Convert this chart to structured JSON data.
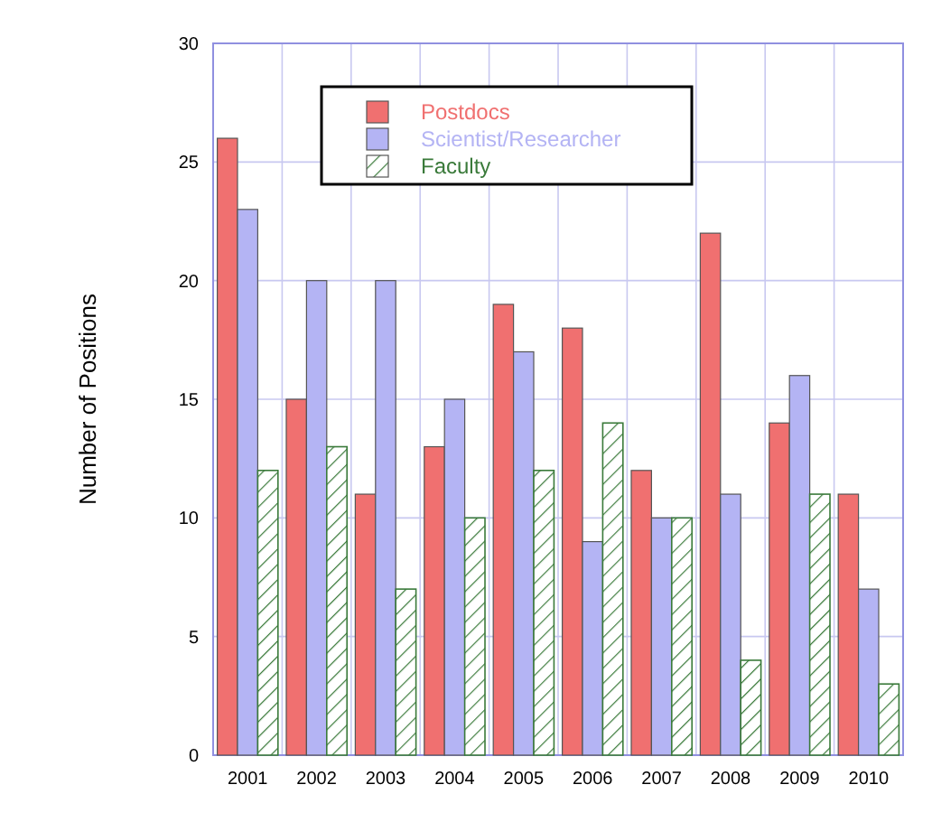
{
  "chart_data": {
    "type": "bar",
    "ylabel": "Number of Positions",
    "categories": [
      "2001",
      "2002",
      "2003",
      "2004",
      "2005",
      "2006",
      "2007",
      "2008",
      "2009",
      "2010"
    ],
    "series": [
      {
        "name": "Postdocs",
        "color": "#f07070",
        "values": [
          26,
          15,
          11,
          13,
          19,
          18,
          12,
          22,
          14,
          11
        ]
      },
      {
        "name": "Scientist/Researcher",
        "color": "#b4b4f4",
        "values": [
          23,
          20,
          20,
          15,
          17,
          9,
          10,
          11,
          16,
          7
        ]
      },
      {
        "name": "Faculty",
        "color": "#3a7a3a",
        "values": [
          12,
          13,
          7,
          10,
          12,
          14,
          10,
          4,
          11,
          3
        ]
      }
    ],
    "ylim": [
      0,
      30
    ],
    "yticks": [
      0,
      5,
      10,
      15,
      20,
      25,
      30
    ],
    "grid": true,
    "legend": "top left"
  }
}
